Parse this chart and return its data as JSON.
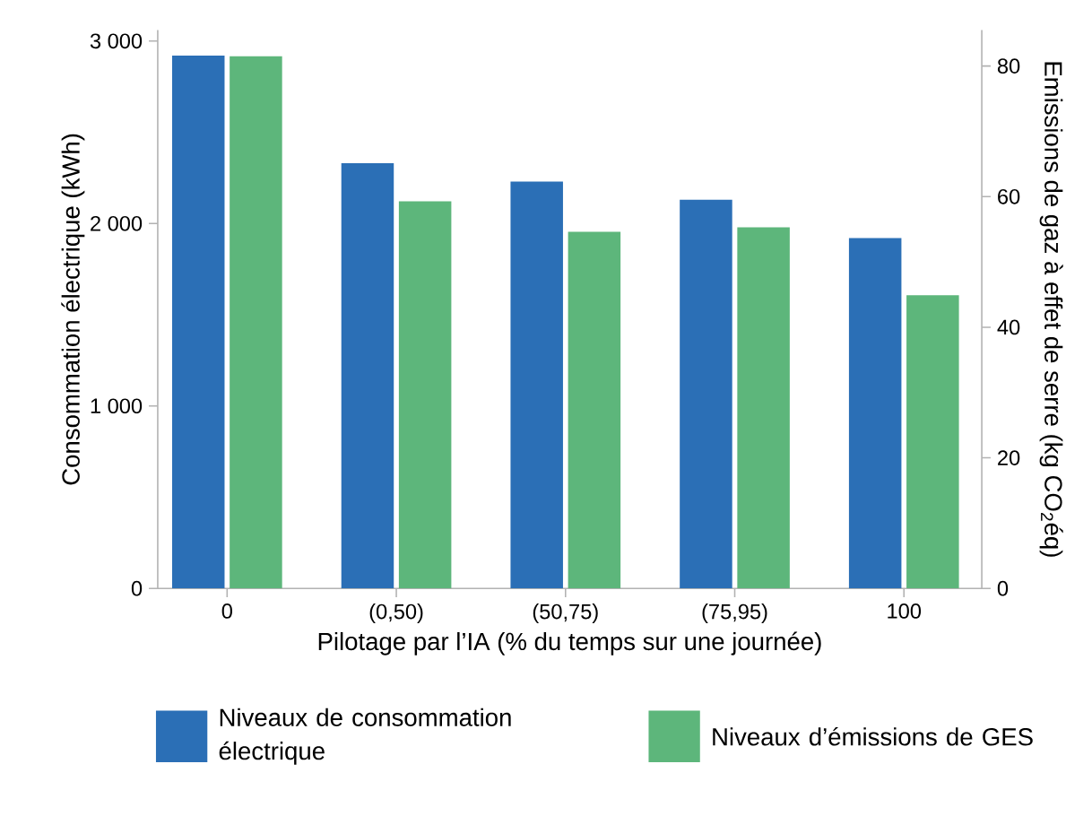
{
  "chart_data": {
    "type": "bar",
    "categories": [
      "0",
      "(0,50)",
      "(50,75)",
      "(75,95)",
      "100"
    ],
    "xlabel": "Pilotage par l’IA (% du temps sur une journée)",
    "ylabel": "Consommation électrique (kWh)",
    "y2label": "Emissions de gaz à effet de serre (kg CO$_{2}$éq)",
    "series": [
      {
        "name": "Niveaux de consommation électrique",
        "color": "#2b6fb6",
        "values": [
          2920,
          2330,
          2230,
          2130,
          1920
        ]
      },
      {
        "name": "Niveaux d’émissions de GES",
        "color": "#5db67b",
        "axis": "y2",
        "values": [
          81.5,
          59.3,
          54.6,
          55.3,
          44.9
        ]
      }
    ],
    "ylim": [
      0,
      3060
    ],
    "yticks": [
      0,
      {
        "value": 1000,
        "label": "1 000"
      },
      {
        "value": 2000,
        "label": "2 000"
      },
      {
        "value": 3000,
        "label": "3 000"
      }
    ],
    "y2lim": [
      0,
      85.5
    ],
    "y2ticks": [
      0,
      20,
      40,
      60,
      80
    ],
    "grid": false,
    "legend": "bottom"
  }
}
